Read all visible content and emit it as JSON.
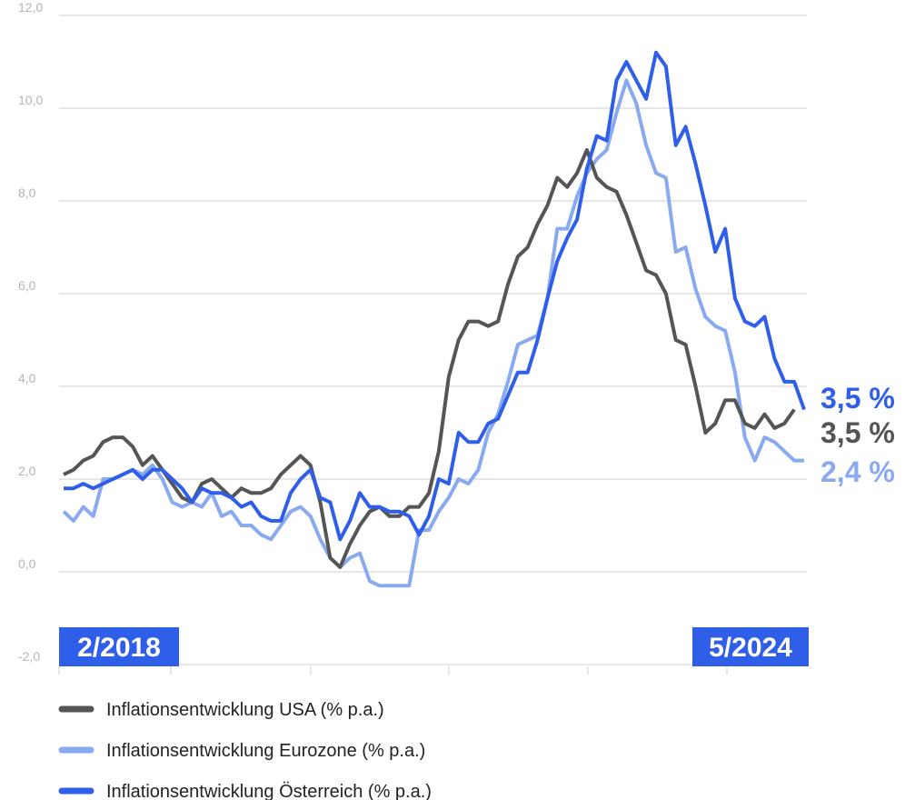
{
  "chart_data": {
    "type": "line",
    "categories": [
      "2/2018",
      null,
      null,
      null,
      null,
      null,
      null,
      null,
      null,
      null,
      null,
      null,
      null,
      null,
      null,
      null,
      null,
      null,
      null,
      null,
      null,
      null,
      null,
      null,
      null,
      null,
      null,
      null,
      null,
      null,
      null,
      null,
      null,
      null,
      null,
      null,
      null,
      null,
      null,
      null,
      null,
      null,
      null,
      null,
      null,
      null,
      null,
      null,
      null,
      null,
      null,
      null,
      null,
      null,
      null,
      null,
      null,
      null,
      null,
      null,
      null,
      null,
      null,
      null,
      null,
      null,
      null,
      null,
      null,
      null,
      null,
      null,
      null,
      null,
      null,
      "5/2024"
    ],
    "series": [
      {
        "name": "Inflationsentwicklung USA (% p.a.)",
        "color": "#555555",
        "values": [
          2.1,
          2.2,
          2.4,
          2.5,
          2.8,
          2.9,
          2.9,
          2.7,
          2.3,
          2.5,
          2.2,
          1.9,
          1.6,
          1.5,
          1.9,
          2.0,
          1.8,
          1.6,
          1.8,
          1.7,
          1.7,
          1.8,
          2.1,
          2.3,
          2.5,
          2.3,
          1.5,
          0.3,
          0.1,
          0.6,
          1.0,
          1.3,
          1.4,
          1.2,
          1.2,
          1.4,
          1.4,
          1.7,
          2.6,
          4.2,
          5.0,
          5.4,
          5.4,
          5.3,
          5.4,
          6.2,
          6.8,
          7.0,
          7.5,
          7.9,
          8.5,
          8.3,
          8.6,
          9.1,
          8.5,
          8.3,
          8.2,
          7.7,
          7.1,
          6.5,
          6.4,
          6.0,
          5.0,
          4.9,
          4.0,
          3.0,
          3.2,
          3.7,
          3.7,
          3.2,
          3.1,
          3.4,
          3.1,
          3.2,
          3.5,
          null
        ],
        "value_labels": [
          null,
          null,
          null,
          null,
          null,
          null,
          null,
          null,
          null,
          null,
          null,
          null,
          null,
          null,
          null,
          null,
          null,
          null,
          null,
          null,
          null,
          null,
          null,
          null,
          null,
          null,
          null,
          null,
          null,
          null,
          null,
          null,
          null,
          null,
          null,
          null,
          null,
          null,
          null,
          null,
          null,
          null,
          null,
          null,
          null,
          null,
          null,
          null,
          null,
          null,
          null,
          null,
          null,
          null,
          null,
          null,
          null,
          null,
          null,
          null,
          null,
          null,
          null,
          null,
          null,
          null,
          null,
          null,
          null,
          null,
          null,
          null,
          null,
          null,
          "3,5 %",
          null
        ]
      },
      {
        "name": "Inflationsentwicklung Eurozone (% p.a.)",
        "color": "#8aaaf0",
        "values": [
          1.3,
          1.1,
          1.4,
          1.2,
          2.0,
          2.0,
          2.1,
          2.2,
          2.1,
          2.3,
          2.0,
          1.5,
          1.4,
          1.5,
          1.4,
          1.7,
          1.2,
          1.3,
          1.0,
          1.0,
          0.8,
          0.7,
          1.0,
          1.3,
          1.4,
          1.2,
          0.7,
          0.3,
          0.1,
          0.3,
          0.4,
          -0.2,
          -0.3,
          -0.3,
          -0.3,
          -0.3,
          0.9,
          0.9,
          1.3,
          1.6,
          2.0,
          1.9,
          2.2,
          3.0,
          3.4,
          4.1,
          4.9,
          5.0,
          5.1,
          5.9,
          7.4,
          7.4,
          8.1,
          8.6,
          8.9,
          9.1,
          9.9,
          10.6,
          10.1,
          9.2,
          8.6,
          8.5,
          6.9,
          7.0,
          6.1,
          5.5,
          5.3,
          5.2,
          4.3,
          2.9,
          2.4,
          2.9,
          2.8,
          2.6,
          2.4,
          2.4
        ],
        "value_labels": [
          null,
          null,
          null,
          null,
          null,
          null,
          null,
          null,
          null,
          null,
          null,
          null,
          null,
          null,
          null,
          null,
          null,
          null,
          null,
          null,
          null,
          null,
          null,
          null,
          null,
          null,
          null,
          null,
          null,
          null,
          null,
          null,
          null,
          null,
          null,
          null,
          null,
          null,
          null,
          null,
          null,
          null,
          null,
          null,
          null,
          null,
          null,
          null,
          null,
          null,
          null,
          null,
          null,
          null,
          null,
          null,
          null,
          null,
          null,
          null,
          null,
          null,
          null,
          null,
          null,
          null,
          null,
          null,
          null,
          null,
          null,
          null,
          null,
          null,
          null,
          "2,4 %"
        ]
      },
      {
        "name": "Inflationsentwicklung Österreich (% p.a.)",
        "color": "#2f5fe8",
        "values": [
          1.8,
          1.8,
          1.9,
          1.8,
          1.9,
          2.0,
          2.1,
          2.2,
          2.0,
          2.2,
          2.2,
          2.0,
          1.8,
          1.5,
          1.8,
          1.7,
          1.7,
          1.6,
          1.4,
          1.5,
          1.2,
          1.1,
          1.1,
          1.7,
          2.0,
          2.2,
          1.6,
          1.5,
          0.7,
          1.1,
          1.7,
          1.4,
          1.4,
          1.3,
          1.3,
          1.2,
          0.8,
          1.2,
          2.0,
          1.9,
          3.0,
          2.8,
          2.8,
          3.2,
          3.3,
          3.8,
          4.3,
          4.3,
          5.0,
          5.9,
          6.7,
          7.2,
          7.6,
          8.7,
          9.4,
          9.3,
          10.6,
          11.0,
          10.6,
          10.2,
          11.2,
          10.9,
          9.2,
          9.6,
          8.8,
          7.9,
          6.9,
          7.4,
          5.9,
          5.4,
          5.3,
          5.5,
          4.6,
          4.1,
          4.1,
          3.5
        ],
        "value_labels": [
          null,
          null,
          null,
          null,
          null,
          null,
          null,
          null,
          null,
          null,
          null,
          null,
          null,
          null,
          null,
          null,
          null,
          null,
          null,
          null,
          null,
          null,
          null,
          null,
          null,
          null,
          null,
          null,
          null,
          null,
          null,
          null,
          null,
          null,
          null,
          null,
          null,
          null,
          null,
          null,
          null,
          null,
          null,
          null,
          null,
          null,
          null,
          null,
          null,
          null,
          null,
          null,
          null,
          null,
          null,
          null,
          null,
          null,
          null,
          null,
          null,
          null,
          null,
          null,
          null,
          null,
          null,
          null,
          null,
          null,
          null,
          null,
          null,
          null,
          null,
          "3,5 %"
        ]
      }
    ],
    "ylim": [
      -2,
      12
    ],
    "yticks": [
      {
        "value": -2,
        "label": "-2,0"
      },
      {
        "value": 0,
        "label": "0,0"
      },
      {
        "value": 2,
        "label": "2,0"
      },
      {
        "value": 4,
        "label": "4,0"
      },
      {
        "value": 6,
        "label": "6,0"
      },
      {
        "value": 8,
        "label": "8,0"
      },
      {
        "value": 10,
        "label": "10,0"
      },
      {
        "value": 12,
        "label": "12,0"
      }
    ],
    "grid": true
  }
}
